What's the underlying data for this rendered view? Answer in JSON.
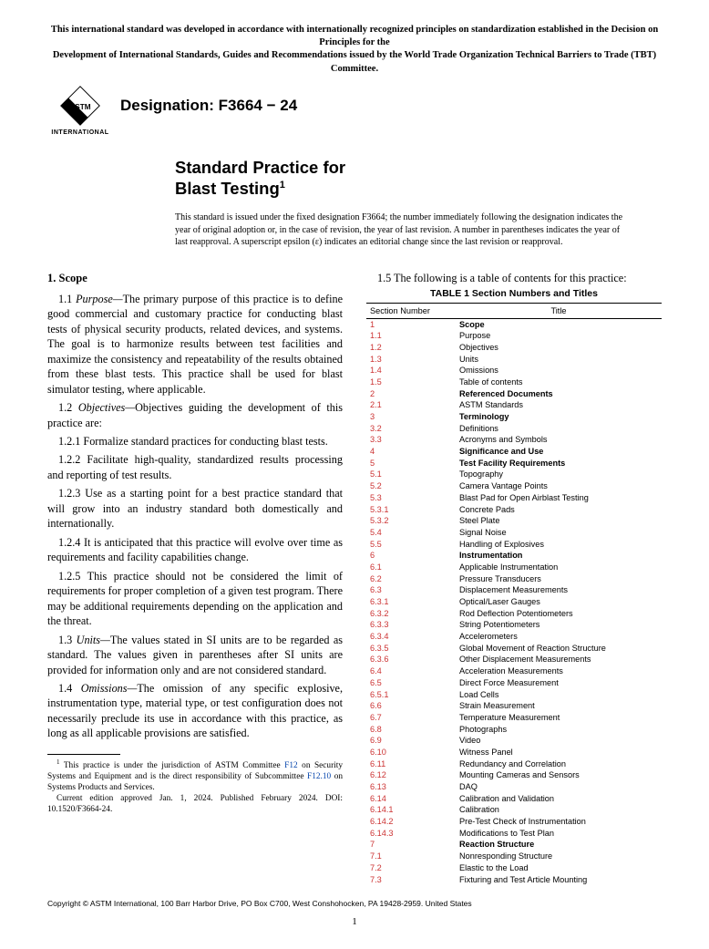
{
  "top_notice_line1": "This international standard was developed in accordance with internationally recognized principles on standardization established in the Decision on Principles for the",
  "top_notice_line2": "Development of International Standards, Guides and Recommendations issued by the World Trade Organization Technical Barriers to Trade (TBT) Committee.",
  "logo_text": "ASTM",
  "logo_sub": "INTERNATIONAL",
  "designation_label": "Designation: F3664 − 24",
  "title_line1": "Standard Practice for",
  "title_line2": "Blast Testing",
  "title_sup": "1",
  "issuance_note": "This standard is issued under the fixed designation F3664; the number immediately following the designation indicates the year of original adoption or, in the case of revision, the year of last revision. A number in parentheses indicates the year of last reapproval. A superscript epsilon (ε) indicates an editorial change since the last revision or reapproval.",
  "scope_heading": "1. Scope",
  "p11_num": "1.1 ",
  "p11_term": "Purpose—",
  "p11_body": "The primary purpose of this practice is to define good commercial and customary practice for conducting blast tests of physical security products, related devices, and systems. The goal is to harmonize results between test facilities and maximize the consistency and repeatability of the results obtained from these blast tests. This practice shall be used for blast simulator testing, where applicable.",
  "p12_num": "1.2 ",
  "p12_term": "Objectives—",
  "p12_body": "Objectives guiding the development of this practice are:",
  "p121": "1.2.1 Formalize standard practices for conducting blast tests.",
  "p122": "1.2.2 Facilitate high-quality, standardized results processing and reporting of test results.",
  "p123": "1.2.3 Use as a starting point for a best practice standard that will grow into an industry standard both domestically and internationally.",
  "p124": "1.2.4 It is anticipated that this practice will evolve over time as requirements and facility capabilities change.",
  "p125": "1.2.5 This practice should not be considered the limit of requirements for proper completion of a given test program. There may be additional requirements depending on the application and the threat.",
  "p13_num": "1.3 ",
  "p13_term": "Units—",
  "p13_body": "The values stated in SI units are to be regarded as standard. The values given in parentheses after SI units are provided for information only and are not considered standard.",
  "p14_num": "1.4 ",
  "p14_term": "Omissions—",
  "p14_body": "The omission of any specific explosive, instrumentation type, material type, or test configuration does not necessarily preclude its use in accordance with this practice, as long as all applicable provisions are satisfied.",
  "footnote1_sup": "1",
  "footnote1_a": " This practice is under the jurisdiction of ASTM Committee ",
  "footnote1_link1": "F12",
  "footnote1_b": " on Security Systems and Equipment and is the direct responsibility of Subcommittee ",
  "footnote1_link2": "F12.10",
  "footnote1_c": " on Systems Products and Services.",
  "footnote2": "Current edition approved Jan. 1, 2024. Published February 2024. DOI: 10.1520/F3664-24.",
  "toc_intro": "1.5 The following is a table of contents for this practice:",
  "toc_title": "TABLE 1 Section Numbers and Titles",
  "toc_head_num": "Section Number",
  "toc_head_title": "Title",
  "toc_rows": [
    {
      "n": "1",
      "t": "Scope",
      "b": true
    },
    {
      "n": "1.1",
      "t": "Purpose"
    },
    {
      "n": "1.2",
      "t": "Objectives"
    },
    {
      "n": "1.3",
      "t": "Units"
    },
    {
      "n": "1.4",
      "t": "Omissions"
    },
    {
      "n": "1.5",
      "t": "Table of contents"
    },
    {
      "n": "2",
      "t": "Referenced Documents",
      "b": true
    },
    {
      "n": "2.1",
      "t": "ASTM Standards"
    },
    {
      "n": "3",
      "t": "Terminology",
      "b": true
    },
    {
      "n": "3.2",
      "t": "Definitions"
    },
    {
      "n": "3.3",
      "t": "Acronyms and Symbols"
    },
    {
      "n": "4",
      "t": "Significance and Use",
      "b": true
    },
    {
      "n": "5",
      "t": "Test Facility Requirements",
      "b": true
    },
    {
      "n": "5.1",
      "t": "Topography"
    },
    {
      "n": "5.2",
      "t": "Camera Vantage Points"
    },
    {
      "n": "5.3",
      "t": "Blast Pad for Open Airblast Testing"
    },
    {
      "n": "5.3.1",
      "t": "Concrete Pads"
    },
    {
      "n": "5.3.2",
      "t": "Steel Plate"
    },
    {
      "n": "5.4",
      "t": "Signal Noise"
    },
    {
      "n": "5.5",
      "t": "Handling of Explosives"
    },
    {
      "n": "6",
      "t": "Instrumentation",
      "b": true
    },
    {
      "n": "6.1",
      "t": "Applicable Instrumentation"
    },
    {
      "n": "6.2",
      "t": "Pressure Transducers"
    },
    {
      "n": "6.3",
      "t": "Displacement Measurements"
    },
    {
      "n": "6.3.1",
      "t": "Optical/Laser Gauges"
    },
    {
      "n": "6.3.2",
      "t": "Rod Deflection Potentiometers"
    },
    {
      "n": "6.3.3",
      "t": "String Potentiometers"
    },
    {
      "n": "6.3.4",
      "t": "Accelerometers"
    },
    {
      "n": "6.3.5",
      "t": "Global Movement of Reaction Structure"
    },
    {
      "n": "6.3.6",
      "t": "Other Displacement Measurements"
    },
    {
      "n": "6.4",
      "t": "Acceleration Measurements"
    },
    {
      "n": "6.5",
      "t": "Direct Force Measurement"
    },
    {
      "n": "6.5.1",
      "t": "Load Cells"
    },
    {
      "n": "6.6",
      "t": "Strain Measurement"
    },
    {
      "n": "6.7",
      "t": "Temperature Measurement"
    },
    {
      "n": "6.8",
      "t": "Photographs"
    },
    {
      "n": "6.9",
      "t": "Video"
    },
    {
      "n": "6.10",
      "t": "Witness Panel"
    },
    {
      "n": "6.11",
      "t": "Redundancy and Correlation"
    },
    {
      "n": "6.12",
      "t": "Mounting Cameras and Sensors"
    },
    {
      "n": "6.13",
      "t": "DAQ"
    },
    {
      "n": "6.14",
      "t": "Calibration and Validation"
    },
    {
      "n": "6.14.1",
      "t": "Calibration"
    },
    {
      "n": "6.14.2",
      "t": "Pre-Test Check of Instrumentation"
    },
    {
      "n": "6.14.3",
      "t": "Modifications to Test Plan"
    },
    {
      "n": "7",
      "t": "Reaction Structure",
      "b": true
    },
    {
      "n": "7.1",
      "t": "Nonresponding Structure"
    },
    {
      "n": "7.2",
      "t": "Elastic to the Load"
    },
    {
      "n": "7.3",
      "t": "Fixturing and Test Article Mounting"
    }
  ],
  "copyright": "Copyright © ASTM International, 100 Barr Harbor Drive, PO Box C700, West Conshohocken, PA 19428-2959. United States",
  "page_number": "1",
  "colors": {
    "toc_num": "#cc3333",
    "link": "#0645ad"
  }
}
